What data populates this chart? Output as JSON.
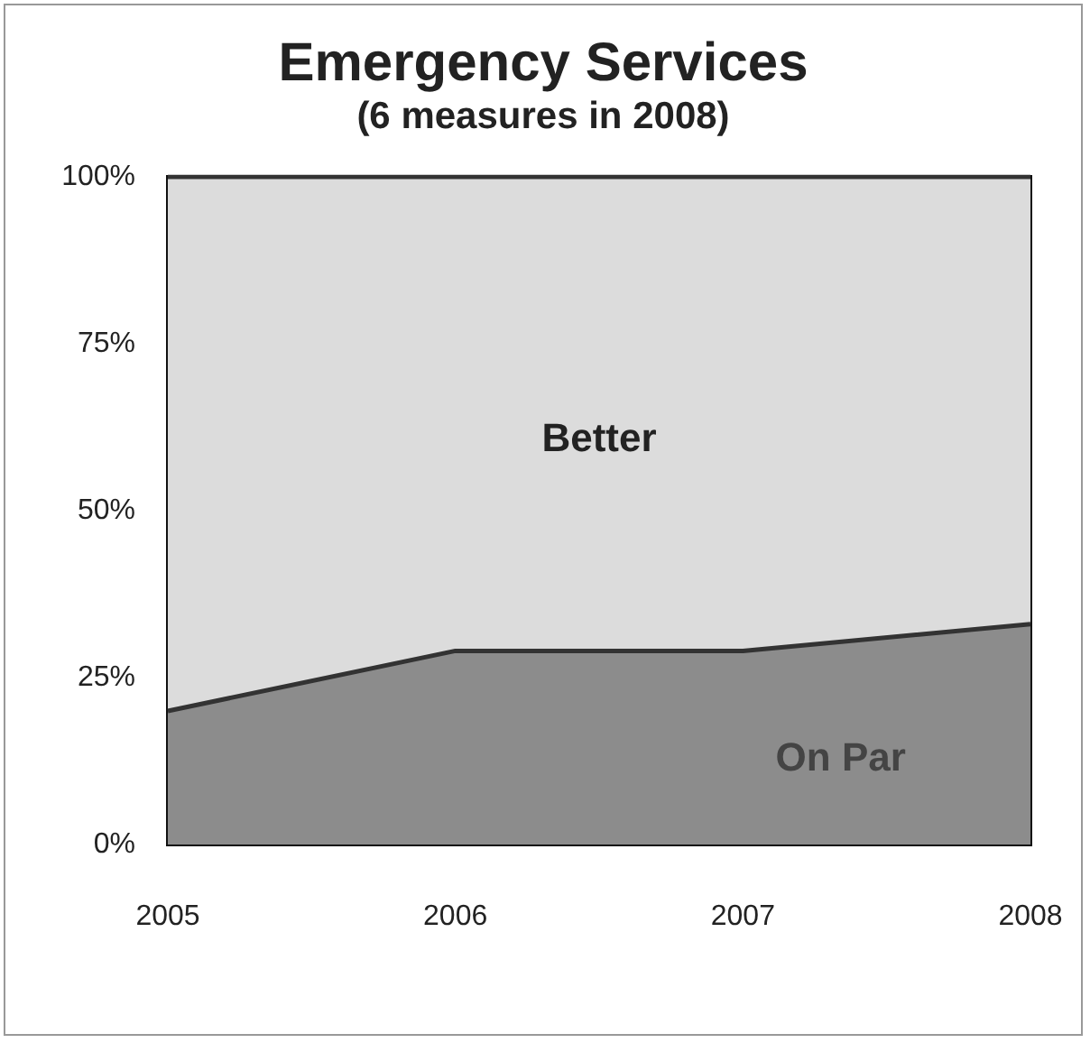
{
  "chart_data": {
    "type": "area",
    "title": "Emergency Services",
    "subtitle": "(6 measures in 2008)",
    "categories": [
      "2005",
      "2006",
      "2007",
      "2008"
    ],
    "stacked": true,
    "series": [
      {
        "name": "On Par",
        "color": "#8c8c8c",
        "values": [
          20,
          29,
          29,
          33
        ]
      },
      {
        "name": "Better",
        "color": "#dcdcdc",
        "values": [
          80,
          71,
          71,
          67
        ]
      }
    ],
    "ylim": [
      0,
      100
    ],
    "yticks": [
      {
        "value": 0,
        "label": "0%"
      },
      {
        "value": 25,
        "label": "25%"
      },
      {
        "value": 50,
        "label": "50%"
      },
      {
        "value": 75,
        "label": "75%"
      },
      {
        "value": 100,
        "label": "100%"
      }
    ],
    "grid": false
  }
}
